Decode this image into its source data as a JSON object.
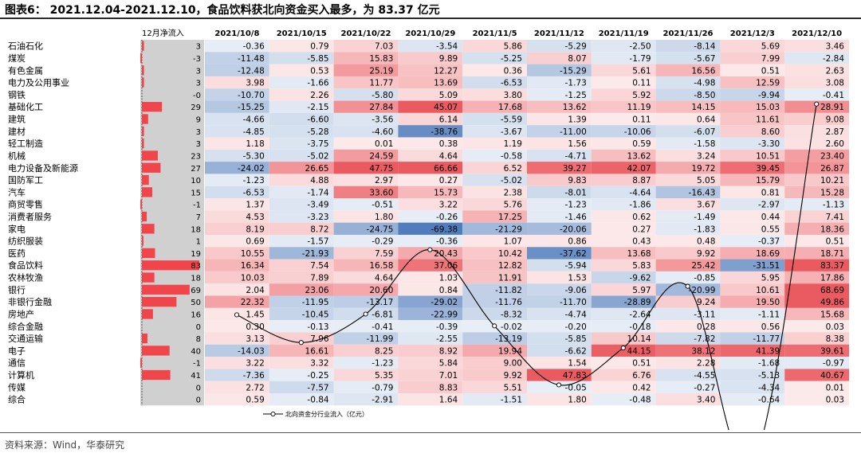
{
  "figure": {
    "title": "图表6：  2021.12.04-2021.12.10，食品饮料获北向资金买入最多，为 83.37 亿元",
    "source": "资料来源：Wind，华泰研究"
  },
  "chart_data": {
    "type": "table",
    "inflow_header": "12月净流入",
    "week_headers": [
      "2021/10/8",
      "2021/10/15",
      "2021/10/22",
      "2021/10/29",
      "2021/11/5",
      "2021/11/12",
      "2021/11/19",
      "2021/11/26",
      "2021/12/3",
      "2021/12/10"
    ],
    "rows": [
      {
        "industry": "石油石化",
        "inflow": "3",
        "weekly": [
          -0.36,
          0.79,
          7.03,
          -3.54,
          5.86,
          -5.29,
          -2.5,
          -8.14,
          5.69,
          3.46
        ]
      },
      {
        "industry": "煤炭",
        "inflow": "-3",
        "weekly": [
          -11.48,
          -5.85,
          15.83,
          9.89,
          -5.25,
          8.07,
          -1.79,
          -5.67,
          7.99,
          -2.84
        ]
      },
      {
        "industry": "有色金属",
        "inflow": "3",
        "weekly": [
          -12.48,
          0.53,
          25.19,
          12.27,
          0.36,
          -15.29,
          5.61,
          16.56,
          0.51,
          2.63
        ]
      },
      {
        "industry": "电力及公用事业",
        "inflow": "3",
        "weekly": [
          3.98,
          -1.66,
          11.77,
          13.69,
          -6.53,
          -1.73,
          0.11,
          -4.98,
          12.59,
          3.08
        ]
      },
      {
        "industry": "钢铁",
        "inflow": "-0",
        "weekly": [
          -10.7,
          2.26,
          -5.8,
          5.09,
          3.8,
          -1.25,
          5.92,
          -8.5,
          -9.94,
          -0.41
        ]
      },
      {
        "industry": "基础化工",
        "inflow": "29",
        "weekly": [
          -15.25,
          -2.15,
          27.84,
          45.07,
          17.68,
          13.62,
          11.19,
          14.15,
          15.03,
          28.91
        ]
      },
      {
        "industry": "建筑",
        "inflow": "9",
        "weekly": [
          -4.66,
          -6.6,
          -3.56,
          6.14,
          -5.59,
          1.39,
          0.11,
          0.64,
          11.61,
          9.08
        ]
      },
      {
        "industry": "建材",
        "inflow": "3",
        "weekly": [
          -4.85,
          -5.28,
          -4.6,
          -38.76,
          -3.67,
          -11.0,
          -10.06,
          -6.07,
          8.6,
          2.87
        ]
      },
      {
        "industry": "轻工制造",
        "inflow": "3",
        "weekly": [
          1.18,
          -3.75,
          0.01,
          0.38,
          1.19,
          1.56,
          0.59,
          -1.58,
          -3.3,
          2.6
        ]
      },
      {
        "industry": "机械",
        "inflow": "23",
        "weekly": [
          -5.3,
          -5.02,
          24.59,
          4.64,
          -0.58,
          -4.71,
          13.62,
          3.24,
          10.51,
          23.4
        ]
      },
      {
        "industry": "电力设备及新能源",
        "inflow": "27",
        "weekly": [
          -24.02,
          26.65,
          47.75,
          66.66,
          6.52,
          39.27,
          42.07,
          19.72,
          39.45,
          26.87
        ]
      },
      {
        "industry": "国防军工",
        "inflow": "10",
        "weekly": [
          -1.23,
          4.88,
          2.97,
          0.27,
          -5.02,
          9.83,
          8.87,
          5.05,
          15.79,
          10.21
        ]
      },
      {
        "industry": "汽车",
        "inflow": "15",
        "weekly": [
          -6.53,
          -1.74,
          33.6,
          15.73,
          2.38,
          -8.01,
          -4.64,
          -16.43,
          0.81,
          15.28
        ]
      },
      {
        "industry": "商贸零售",
        "inflow": "-1",
        "weekly": [
          1.37,
          -3.49,
          -0.51,
          3.22,
          5.76,
          -1.23,
          -1.86,
          3.67,
          -2.97,
          -1.13
        ]
      },
      {
        "industry": "消费者服务",
        "inflow": "7",
        "weekly": [
          4.53,
          -3.23,
          1.8,
          -0.26,
          17.25,
          -1.46,
          0.62,
          -1.49,
          0.44,
          7.41
        ]
      },
      {
        "industry": "家电",
        "inflow": "18",
        "weekly": [
          8.19,
          8.72,
          -24.75,
          -69.38,
          -21.29,
          -20.06,
          0.27,
          -1.83,
          0.55,
          18.36
        ]
      },
      {
        "industry": "纺织服装",
        "inflow": "1",
        "weekly": [
          0.69,
          -1.57,
          -0.29,
          -0.36,
          1.07,
          0.86,
          0.43,
          0.48,
          -0.37,
          0.51
        ]
      },
      {
        "industry": "医药",
        "inflow": "19",
        "weekly": [
          10.55,
          -21.93,
          7.59,
          20.43,
          10.42,
          -37.62,
          13.68,
          9.92,
          18.69,
          18.71
        ]
      },
      {
        "industry": "食品饮料",
        "inflow": "83",
        "weekly": [
          16.34,
          7.54,
          16.58,
          37.06,
          12.82,
          -5.94,
          5.83,
          25.42,
          -31.51,
          83.37
        ]
      },
      {
        "industry": "农林牧渔",
        "inflow": "18",
        "weekly": [
          10.03,
          7.89,
          4.64,
          1.03,
          11.91,
          1.53,
          -9.62,
          -0.85,
          5.95,
          17.86
        ]
      },
      {
        "industry": "银行",
        "inflow": "69",
        "weekly": [
          2.04,
          23.06,
          20.6,
          0.84,
          -11.82,
          -9.06,
          5.97,
          -20.99,
          10.61,
          68.69
        ]
      },
      {
        "industry": "非银行金融",
        "inflow": "50",
        "weekly": [
          22.32,
          -11.95,
          -13.17,
          -29.02,
          -11.76,
          -11.7,
          -28.89,
          9.24,
          19.5,
          49.86
        ]
      },
      {
        "industry": "房地产",
        "inflow": "16",
        "weekly": [
          1.45,
          -10.45,
          -6.81,
          -22.99,
          -8.32,
          -4.74,
          -2.64,
          -3.11,
          -1.11,
          15.68
        ]
      },
      {
        "industry": "综合金融",
        "inflow": "0",
        "weekly": [
          0.3,
          -0.13,
          -0.41,
          -0.39,
          -0.02,
          -0.2,
          -0.18,
          0.28,
          0.56,
          0.03
        ]
      },
      {
        "industry": "交通运输",
        "inflow": "8",
        "weekly": [
          3.13,
          7.96,
          -11.99,
          -2.55,
          -13.19,
          -5.85,
          10.14,
          -7.82,
          -11.77,
          8.38
        ]
      },
      {
        "industry": "电子",
        "inflow": "40",
        "weekly": [
          -14.03,
          16.61,
          8.25,
          8.92,
          19.94,
          -6.62,
          44.15,
          38.12,
          41.39,
          39.61
        ]
      },
      {
        "industry": "通信",
        "inflow": "-1",
        "weekly": [
          3.22,
          3.32,
          -1.23,
          5.84,
          9.0,
          1.54,
          0.51,
          2.28,
          -1.68,
          -0.97
        ]
      },
      {
        "industry": "计算机",
        "inflow": "41",
        "weekly": [
          -7.36,
          -0.25,
          5.35,
          7.01,
          9.92,
          47.83,
          6.76,
          -4.55,
          -5.13,
          40.67
        ]
      },
      {
        "industry": "传媒",
        "inflow": "0",
        "weekly": [
          2.72,
          -7.57,
          -0.79,
          8.83,
          5.51,
          -0.05,
          0.42,
          -0.27,
          -4.34,
          0.01
        ]
      },
      {
        "industry": "综合",
        "inflow": "0",
        "weekly": [
          0.59,
          -0.84,
          -2.91,
          1.64,
          -1.51,
          1.8,
          -0.48,
          3.4,
          -0.64,
          0.03
        ]
      }
    ],
    "line_series": {
      "name": "北向资金分行业流入（亿元）",
      "values": [
        16.34,
        7.54,
        16.58,
        37.06,
        12.82,
        -5.94,
        5.83,
        25.42,
        -31.51,
        83.37
      ]
    },
    "colors": {
      "positive": "#e8494f",
      "negative": "#3f6fb4",
      "inflow_bar": "#f0454b",
      "inflow_bg": "#d0d0d0"
    }
  }
}
